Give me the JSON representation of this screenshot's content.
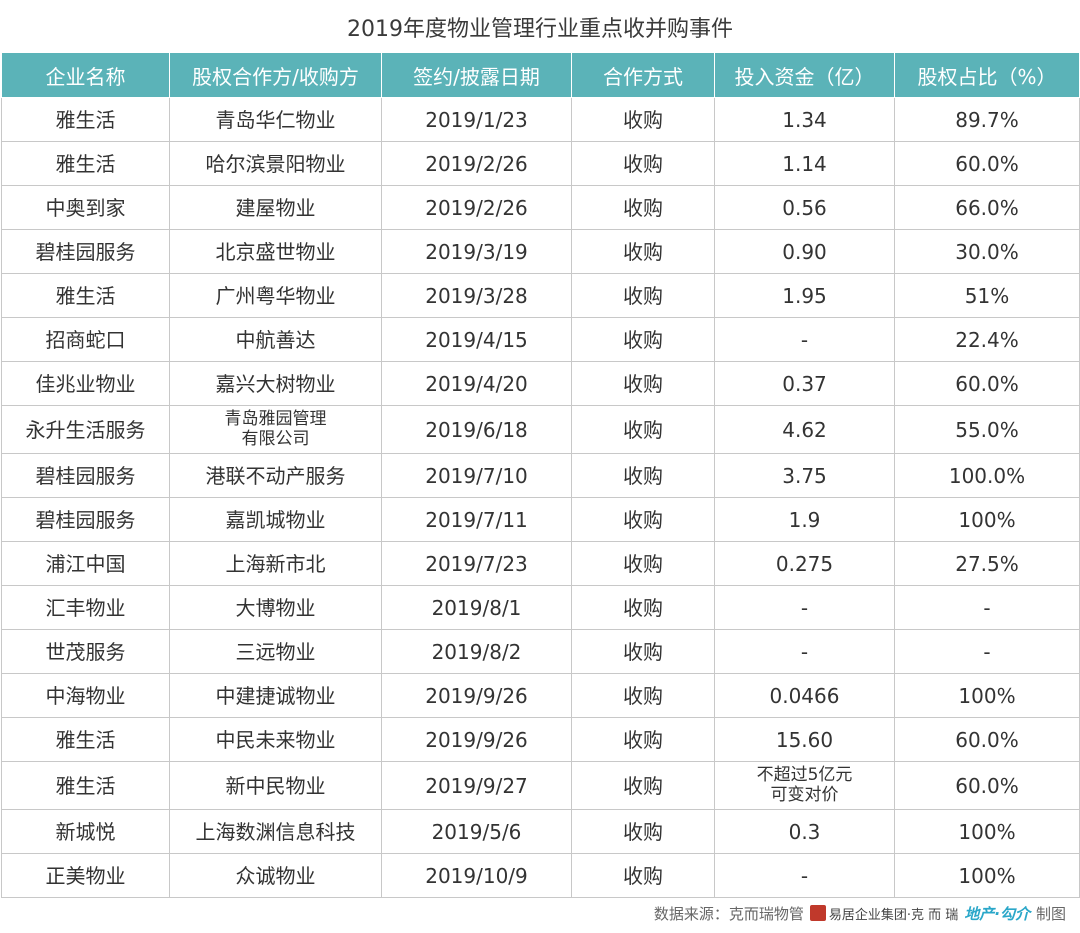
{
  "title": "2019年度物业管理行业重点收并购事件",
  "headers": [
    "企业名称",
    "股权合作方/收购方",
    "签约/披露日期",
    "合作方式",
    "投入资金（亿）",
    "股权占比（%）"
  ],
  "rows": [
    [
      "雅生活",
      "青岛华仁物业",
      "2019/1/23",
      "收购",
      "1.34",
      "89.7%"
    ],
    [
      "雅生活",
      "哈尔滨景阳物业",
      "2019/2/26",
      "收购",
      "1.14",
      "60.0%"
    ],
    [
      "中奥到家",
      "建屋物业",
      "2019/2/26",
      "收购",
      "0.56",
      "66.0%"
    ],
    [
      "碧桂园服务",
      "北京盛世物业",
      "2019/3/19",
      "收购",
      "0.90",
      "30.0%"
    ],
    [
      "雅生活",
      "广州粤华物业",
      "2019/3/28",
      "收购",
      "1.95",
      "51%%"
    ],
    [
      "招商蛇口",
      "中航善达",
      "2019/4/15",
      "收购",
      "-",
      "22.4%"
    ],
    [
      "佳兆业物业",
      "嘉兴大树物业",
      "2019/4/20",
      "收购",
      "0.37",
      "60.0%"
    ],
    [
      "永升生活服务",
      "青岛雅园管理\n有限公司",
      "2019/6/18",
      "收购",
      "4.62",
      "55.0%"
    ],
    [
      "碧桂园服务",
      "港联不动产服务",
      "2019/7/10",
      "收购",
      "3.75",
      "100.0%"
    ],
    [
      "碧桂园服务",
      "嘉凯城物业",
      "2019/7/11",
      "收购",
      "1.9",
      "100%"
    ],
    [
      "浦江中国",
      "上海新市北",
      "2019/7/23",
      "收购",
      "0.275",
      "27.5%"
    ],
    [
      "汇丰物业",
      "大博物业",
      "2019/8/1",
      "收购",
      "-",
      "-"
    ],
    [
      "世茂服务",
      "三远物业",
      "2019/8/2",
      "收购",
      "-",
      "-"
    ],
    [
      "中海物业",
      "中建捷诚物业",
      "2019/9/26",
      "收购",
      "0.0466",
      "100%"
    ],
    [
      "雅生活",
      "中民未来物业",
      "2019/9/26",
      "收购",
      "15.60",
      "60.0%"
    ],
    [
      "雅生活",
      "新中民物业",
      "2019/9/27",
      "收购",
      "不超过5亿元\n可变对价",
      "60.0%"
    ],
    [
      "新城悦",
      "上海数渊信息科技",
      "2019/5/6",
      "收购",
      "0.3",
      "100%"
    ],
    [
      "正美物业",
      "众诚物业",
      "2019/10/9",
      "收购",
      "-",
      "100%"
    ]
  ],
  "footer": {
    "source": "数据来源：克而瑞物管",
    "logo1": "易居企业集团·克 而 瑞",
    "logo2": "地产·勾介",
    "suffix": "制图"
  }
}
